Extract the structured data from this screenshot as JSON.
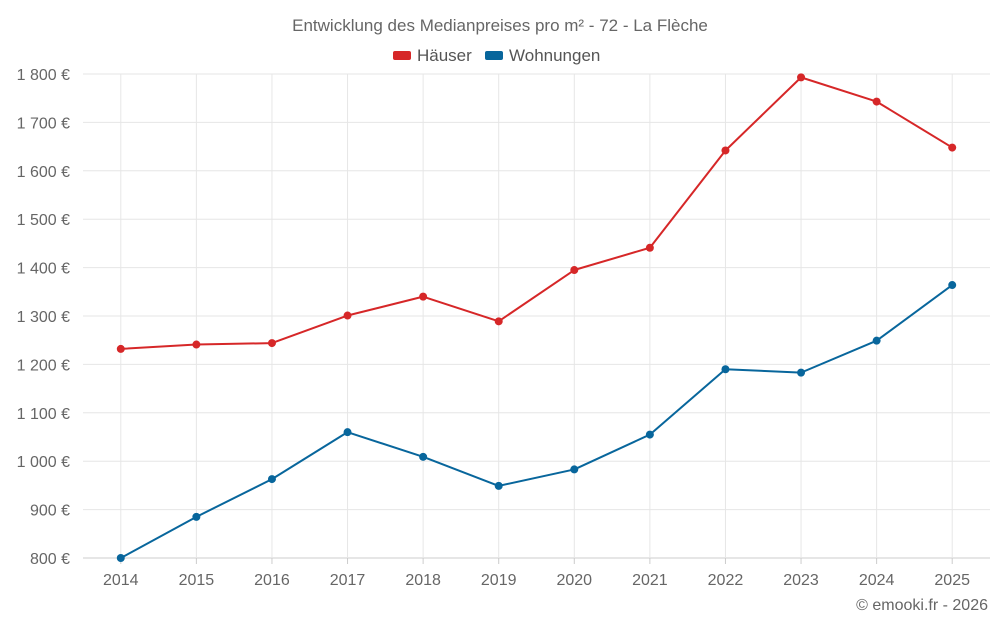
{
  "chart_data": {
    "type": "line",
    "title": "Entwicklung des Medianpreises pro m² - 72 - La Flèche",
    "categories": [
      "2014",
      "2015",
      "2016",
      "2017",
      "2018",
      "2019",
      "2020",
      "2021",
      "2022",
      "2023",
      "2024",
      "2025"
    ],
    "series": [
      {
        "name": "Häuser",
        "color": "#d62728",
        "values": [
          1232,
          1241,
          1244,
          1301,
          1340,
          1289,
          1395,
          1441,
          1642,
          1793,
          1743,
          1648
        ]
      },
      {
        "name": "Wohnungen",
        "color": "#08669c",
        "values": [
          800,
          885,
          963,
          1060,
          1009,
          949,
          983,
          1055,
          1190,
          1183,
          1249,
          1364
        ]
      }
    ],
    "ylim": [
      800,
      1800
    ],
    "yticks": [
      800,
      900,
      1000,
      1100,
      1200,
      1300,
      1400,
      1500,
      1600,
      1700,
      1800
    ],
    "ytick_labels": [
      "800 €",
      "900 €",
      "1 000 €",
      "1 100 €",
      "1 200 €",
      "1 300 €",
      "1 400 €",
      "1 500 €",
      "1 600 €",
      "1 700 €",
      "1 800 €"
    ],
    "xlabel": "",
    "ylabel": "",
    "legend_position": "top-center",
    "grid": true
  },
  "credit": "© emooki.fr - 2026"
}
